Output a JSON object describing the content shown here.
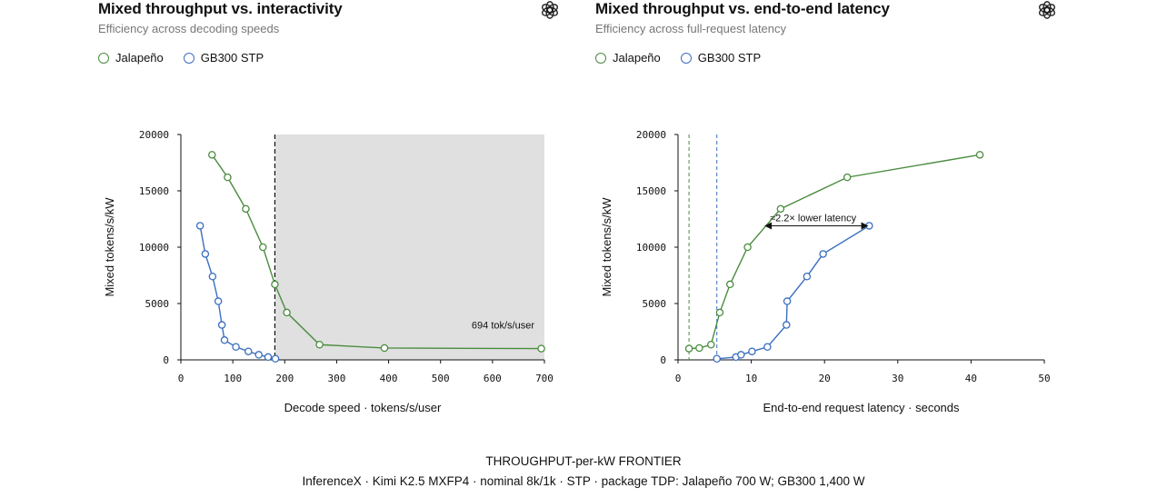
{
  "colors": {
    "jalapeno": "#4a8c3f",
    "gb300": "#3b6fbf",
    "shade": "#e0e0e0"
  },
  "logo_icon": "openai-logo-icon",
  "legend": {
    "jalapeno": "Jalapeño",
    "gb300": "GB300 STP"
  },
  "left": {
    "title": "Mixed throughput vs. interactivity",
    "subtitle": "Efficiency across decoding speeds"
  },
  "right": {
    "title": "Mixed throughput vs. end-to-end latency",
    "subtitle": "Efficiency across full-request latency"
  },
  "chart_data": [
    {
      "type": "line",
      "xlabel": "Decode speed · tokens/s/user",
      "ylabel": "Mixed tokens/s/kW",
      "xlim": [
        0,
        700
      ],
      "ylim": [
        0,
        20000
      ],
      "xticks": [
        0,
        100,
        200,
        300,
        400,
        500,
        600,
        700
      ],
      "yticks": [
        0,
        5000,
        10000,
        15000,
        20000
      ],
      "shaded_region_x": [
        181,
        700
      ],
      "vline_x": 181,
      "annotation": "694 tok/s/user",
      "series": [
        {
          "name": "Jalapeño",
          "color": "#4a8c3f",
          "x": [
            60,
            90,
            125,
            158,
            181,
            204,
            267,
            392,
            694
          ],
          "y": [
            18200,
            16200,
            13400,
            10000,
            6700,
            4200,
            1350,
            1050,
            1000
          ]
        },
        {
          "name": "GB300 STP",
          "color": "#3b6fbf",
          "x": [
            37,
            47,
            61,
            72,
            79,
            84,
            106,
            130,
            150,
            168,
            182
          ],
          "y": [
            11900,
            9400,
            7400,
            5200,
            3100,
            1750,
            1150,
            750,
            450,
            250,
            100
          ]
        }
      ]
    },
    {
      "type": "line",
      "xlabel": "End-to-end request latency · seconds",
      "ylabel": "Mixed tokens/s/kW",
      "xlim": [
        0,
        50
      ],
      "ylim": [
        0,
        20000
      ],
      "xticks": [
        0,
        10,
        20,
        30,
        40,
        50
      ],
      "yticks": [
        0,
        5000,
        10000,
        15000,
        20000
      ],
      "vlines": [
        {
          "x": 1.5,
          "color": "#4a8c3f"
        },
        {
          "x": 5.3,
          "color": "#3b6fbf"
        }
      ],
      "annotation": "≈2.2× lower latency",
      "arrow": {
        "x_from": 26.0,
        "x_to": 11.8,
        "y": 11900
      },
      "series": [
        {
          "name": "Jalapeño",
          "color": "#4a8c3f",
          "x": [
            1.5,
            2.9,
            4.5,
            5.7,
            7.1,
            9.5,
            14.0,
            23.1,
            41.2
          ],
          "y": [
            1000,
            1050,
            1350,
            4200,
            6700,
            10000,
            13400,
            16200,
            18200
          ]
        },
        {
          "name": "GB300 STP",
          "color": "#3b6fbf",
          "x": [
            5.3,
            7.9,
            8.6,
            10.1,
            12.2,
            14.8,
            14.9,
            17.6,
            19.8,
            26.1
          ],
          "y": [
            100,
            250,
            450,
            750,
            1150,
            3100,
            5200,
            7400,
            9400,
            11900
          ]
        }
      ]
    }
  ],
  "footer": {
    "title": "THROUGHPUT-per-kW FRONTIER",
    "subtitle": "InferenceX · Kimi K2.5 MXFP4 · nominal 8k/1k · STP · package TDP: Jalapeño 700 W; GB300 1,400 W"
  }
}
